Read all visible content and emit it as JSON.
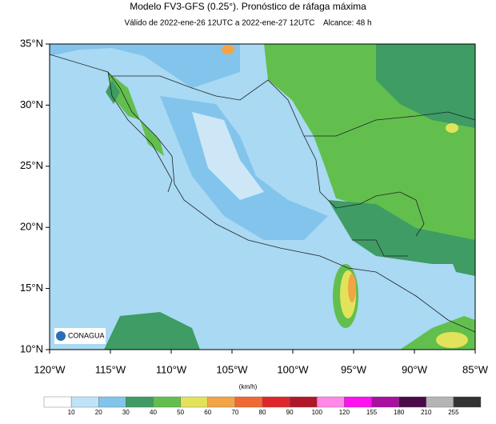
{
  "header": {
    "title": "Modelo FV3-GFS (0.25°). Pronóstico de ráfaga máxima",
    "subtitle": "Válido de 2022-ene-26 12UTC a 2022-ene-27 12UTC    Alcance: 48 h"
  },
  "map": {
    "lat_ticks": [
      "35°N",
      "30°N",
      "25°N",
      "20°N",
      "15°N",
      "10°N"
    ],
    "lon_ticks": [
      "120°W",
      "115°W",
      "110°W",
      "105°W",
      "100°W",
      "95°W",
      "90°W",
      "85°W"
    ],
    "logo": "CONAGUA"
  },
  "colorbar": {
    "units": "(km/h)",
    "labels": [
      10,
      20,
      30,
      40,
      50,
      60,
      70,
      80,
      90,
      100,
      120,
      155,
      180,
      210,
      255
    ],
    "colors": [
      "#ffffff",
      "#bfe4f8",
      "#82c4ec",
      "#3e9c64",
      "#62bf4e",
      "#e2e35a",
      "#f2a447",
      "#ee6a32",
      "#e0262a",
      "#b0182a",
      "#ff88e8",
      "#ff10f0",
      "#a8109e",
      "#4a0a48",
      "#b4b4b4",
      "#333333"
    ]
  }
}
